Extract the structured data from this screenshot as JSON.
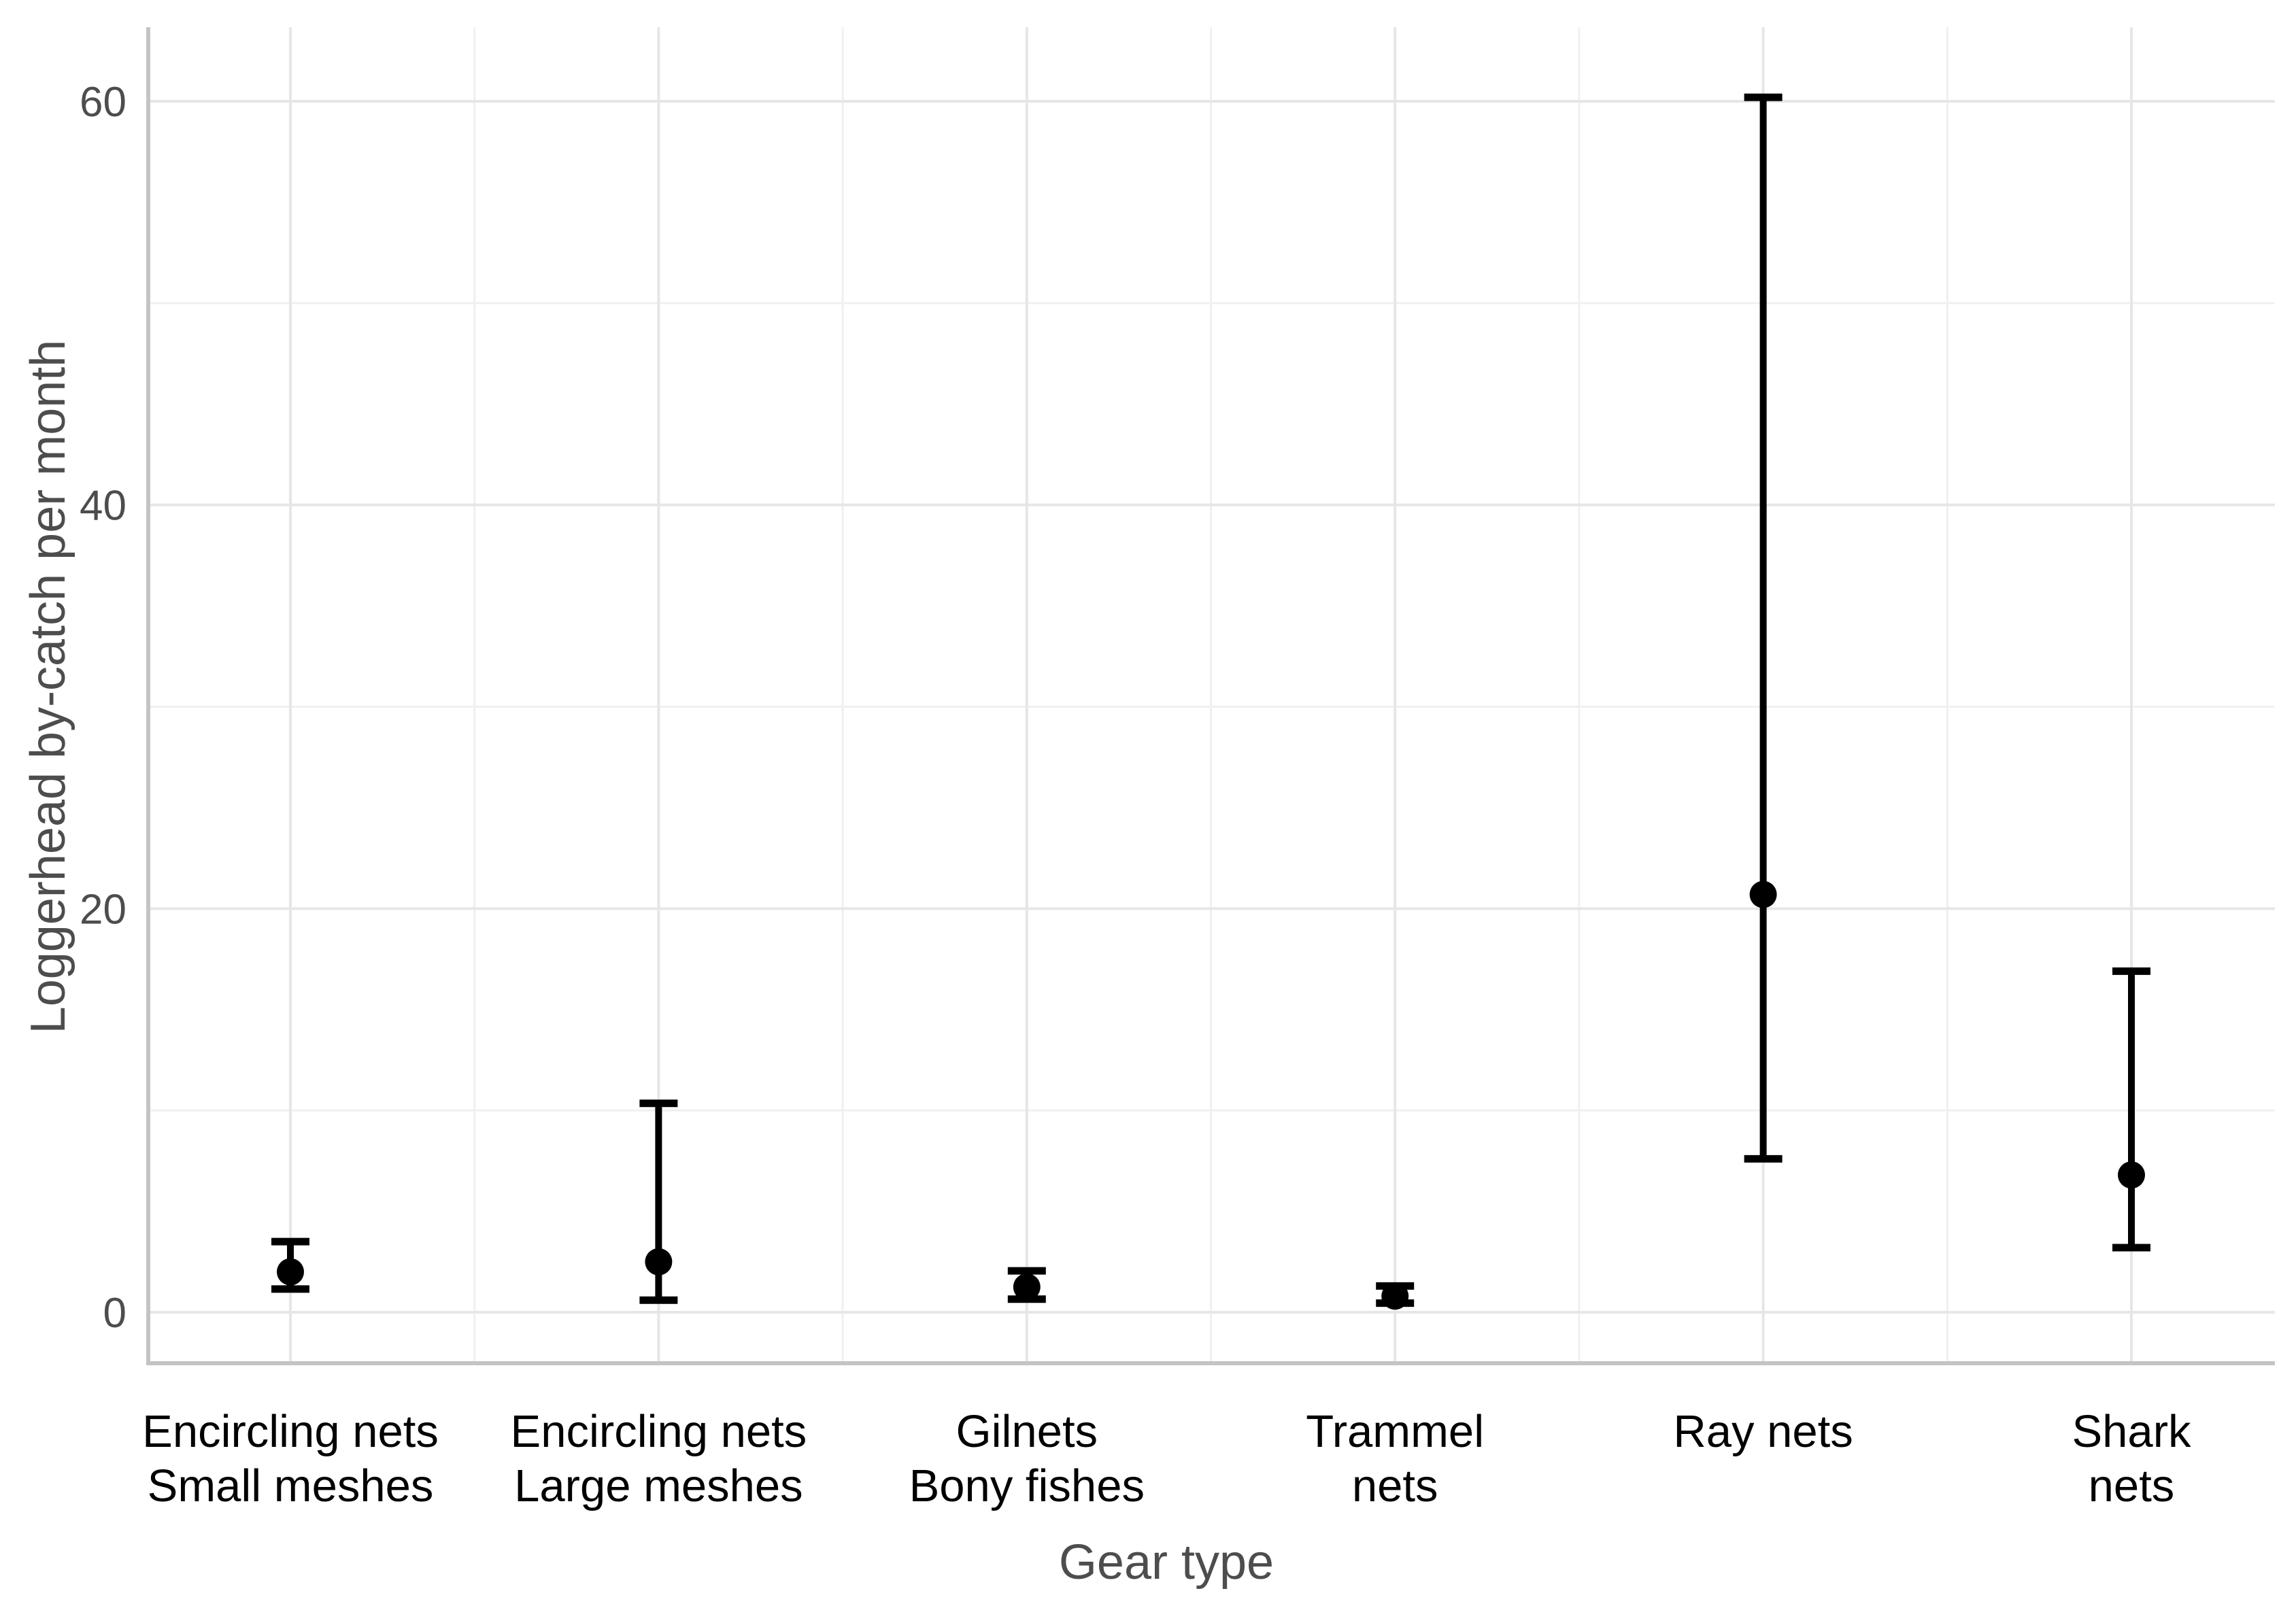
{
  "chart_data": {
    "type": "pointrange",
    "title": "",
    "xlabel": "Gear type",
    "ylabel": "Loggerhead by-catch per month",
    "categories": [
      {
        "id": "encircling-small",
        "lines": [
          "Encircling nets",
          "Small meshes"
        ]
      },
      {
        "id": "encircling-large",
        "lines": [
          "Encircling nets",
          "Large meshes"
        ]
      },
      {
        "id": "gilnets-bony",
        "lines": [
          "Gilnets",
          "Bony fishes"
        ]
      },
      {
        "id": "trammel-nets",
        "lines": [
          "Trammel",
          "nets"
        ]
      },
      {
        "id": "ray-nets",
        "lines": [
          "Ray nets"
        ]
      },
      {
        "id": "shark-nets",
        "lines": [
          "Shark",
          "nets"
        ]
      }
    ],
    "series": [
      {
        "name": "Loggerhead by-catch estimate",
        "values": [
          2.0,
          2.5,
          1.25,
          0.8,
          20.7,
          6.8
        ],
        "ci_lower": [
          1.15,
          0.6,
          0.65,
          0.45,
          7.6,
          3.2
        ],
        "ci_upper": [
          3.5,
          10.35,
          2.05,
          1.3,
          60.2,
          16.9
        ]
      }
    ],
    "y_axis": {
      "tick_labels": [
        "0",
        "20",
        "40",
        "60"
      ],
      "ticks": [
        0,
        20,
        40,
        60
      ],
      "minor_ticks": [
        10,
        30,
        50
      ],
      "ylim": [
        -2.5,
        63.9
      ]
    },
    "x_axis": {
      "minor_gridlines_between_categories": true
    },
    "grid": {
      "visible": true,
      "horizontal": "major+minor",
      "vertical": "major+minor"
    },
    "legend": "none",
    "colors": {
      "background": "#ffffff",
      "point": "#000000",
      "errorbar": "#000000",
      "grid_major": "#e6e6e6",
      "grid_minor": "#f0f0f0",
      "axis_line": "#c4c4c4",
      "tick_text": "#4d4d4d",
      "axis_title_text": "#4d4d4d",
      "category_text": "#000000"
    }
  }
}
